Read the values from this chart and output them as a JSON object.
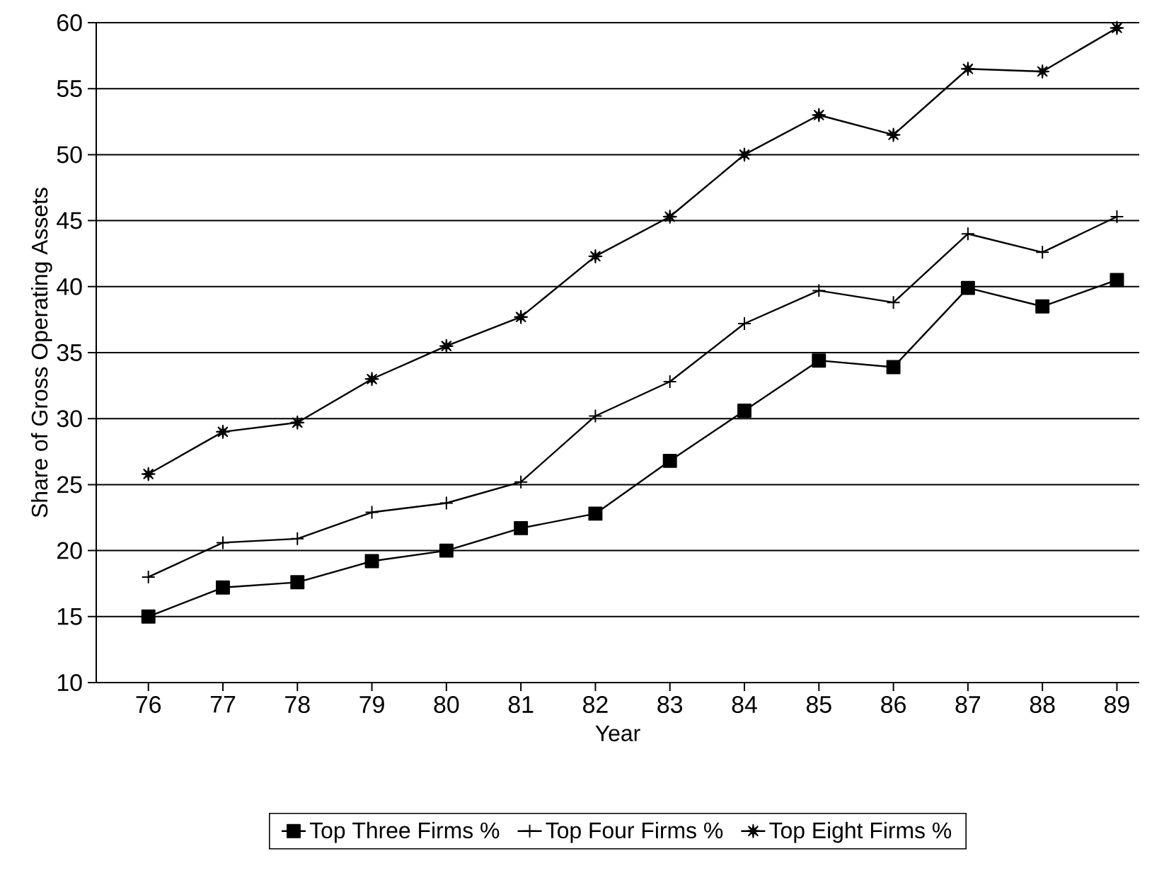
{
  "chart_data": {
    "type": "line",
    "xlabel": "Year",
    "ylabel": "Share of Gross Operating Assets",
    "categories": [
      "76",
      "77",
      "78",
      "79",
      "80",
      "81",
      "82",
      "83",
      "84",
      "85",
      "86",
      "87",
      "88",
      "89"
    ],
    "ylim": [
      10,
      60
    ],
    "yticks": [
      10,
      15,
      20,
      25,
      30,
      35,
      40,
      45,
      50,
      55,
      60
    ],
    "grid": "y",
    "legend": "bottom",
    "series": [
      {
        "name": "Top Three Firms %",
        "color": "#000000",
        "marker": "square",
        "values": [
          15,
          17.2,
          17.6,
          19.2,
          20,
          21.7,
          22.8,
          26.8,
          30.6,
          34.4,
          33.9,
          39.9,
          38.5,
          40.5
        ]
      },
      {
        "name": "Top Four Firms %",
        "color": "#000000",
        "marker": "cross",
        "values": [
          18,
          20.6,
          20.9,
          22.9,
          23.6,
          25.2,
          30.2,
          32.8,
          37.2,
          39.7,
          38.8,
          44,
          42.6,
          45.3
        ]
      },
      {
        "name": "Top Eight Firms %",
        "color": "#000000",
        "marker": "star",
        "values": [
          25.8,
          29,
          29.7,
          33,
          35.5,
          37.7,
          42.3,
          45.3,
          50,
          53,
          51.5,
          56.5,
          56.3,
          59.6
        ]
      }
    ]
  }
}
